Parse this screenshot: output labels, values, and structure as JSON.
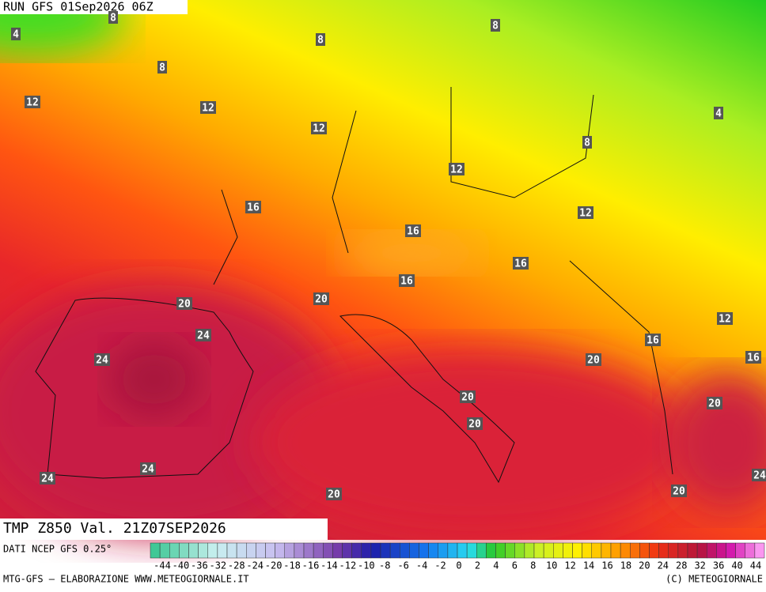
{
  "header": {
    "run": "RUN GFS 01Sep2026 06Z",
    "title": "TMP Z850 Val. 21Z07SEP2026"
  },
  "contour_labels": [
    8,
    8,
    8,
    8,
    8,
    4,
    4,
    12,
    12,
    12,
    12,
    12,
    12,
    16,
    16,
    16,
    16,
    16,
    16,
    20,
    20,
    20,
    20,
    20,
    20,
    20,
    20,
    24,
    24,
    24,
    24,
    24
  ],
  "colorbar": {
    "source": "DATI NCEP GFS 0.25°",
    "ticks": [
      -44,
      -40,
      -36,
      -32,
      -28,
      -24,
      -20,
      -18,
      -16,
      -14,
      -12,
      -10,
      -8,
      -6,
      -4,
      -2,
      0,
      2,
      4,
      6,
      8,
      10,
      12,
      14,
      16,
      18,
      20,
      24,
      28,
      32,
      36,
      40,
      44
    ]
  },
  "footer": {
    "left": "MTG-GFS — ELABORAZIONE WWW.METEOGIORNALE.IT",
    "right": "(C) METEOGIORNALE"
  }
}
